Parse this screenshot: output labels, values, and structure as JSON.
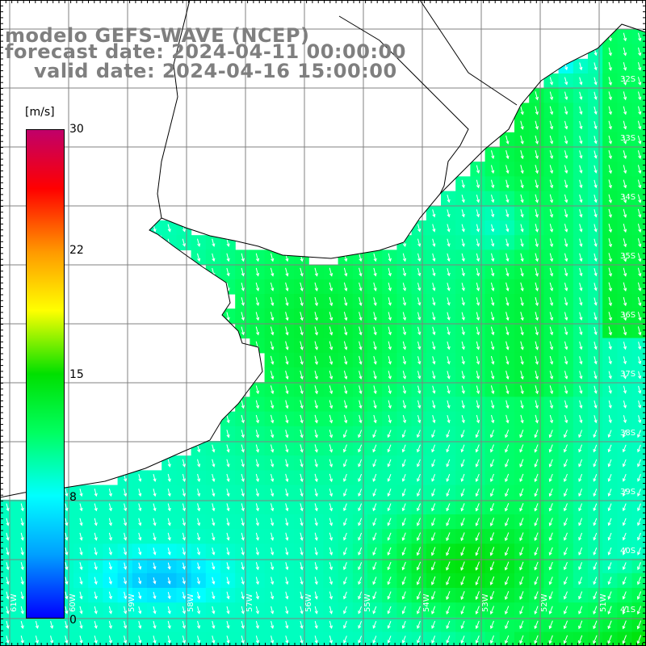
{
  "title": {
    "line1": "modelo GEFS-WAVE (NCEP)",
    "line2": "forecast date: 2024-04-11 00:00:00",
    "line3": "valid date: 2024-04-16 15:00:00"
  },
  "colorbar": {
    "unit": "[m/s]",
    "ticks": [
      "30",
      "22",
      "15",
      "8",
      "0"
    ],
    "tick_values": [
      30,
      22,
      15,
      8,
      0
    ],
    "min": 0,
    "max": 30,
    "colors": [
      "#0000ff",
      "#00a0ff",
      "#00ffff",
      "#00ff60",
      "#00e000",
      "#ffff00",
      "#ff9900",
      "#ff0000",
      "#c0006a"
    ]
  },
  "axes": {
    "lat_labels": [
      "32S",
      "33S",
      "34S",
      "35S",
      "36S",
      "37S",
      "38S",
      "39S",
      "40S",
      "41S"
    ],
    "lon_labels": [
      "61W",
      "60W",
      "59W",
      "58W",
      "57W",
      "56W",
      "55W",
      "54W",
      "53W",
      "52W",
      "51W"
    ]
  },
  "field": {
    "variable": "wind speed",
    "units": "m/s",
    "land_color": "#ffffff",
    "coast_color": "#000000",
    "grid_color": "#808080"
  }
}
